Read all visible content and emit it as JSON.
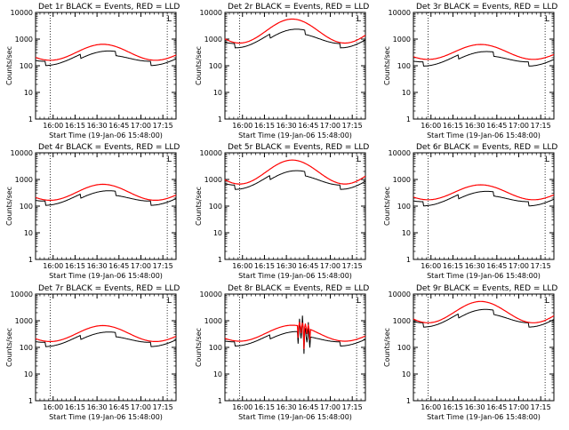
{
  "chart_data": {
    "type": "line",
    "ylabel": "Counts/sec",
    "xlabel": "Start Time (19-Jan-06 15:48:00)",
    "x_tick_labels": [
      "16:00",
      "16:15",
      "16:30",
      "16:45",
      "17:00",
      "17:15"
    ],
    "y_tick_labels": [
      "1",
      "10",
      "100",
      "1000",
      "10000"
    ],
    "y_scale": "log",
    "ylim": [
      1,
      10000
    ],
    "xlim_minutes_after_start": [
      0,
      96
    ],
    "legend": "in title",
    "corner_mark": "L",
    "series_colors": {
      "events": "#000000",
      "lld": "#ff0000"
    },
    "panels": [
      {
        "title": "Det 1r BLACK = Events, RED = LLD",
        "lld_base": 320,
        "lld_amp": 0.3,
        "ev_base": 200,
        "ev_amp": 0.22,
        "ev_step": 0.55
      },
      {
        "title": "Det 2r BLACK = Events, RED = LLD",
        "lld_base": 2000,
        "lld_amp": 0.45,
        "ev_base": 1100,
        "ev_amp": 0.3,
        "ev_step": 0.6
      },
      {
        "title": "Det 3r BLACK = Events, RED = LLD",
        "lld_base": 330,
        "lld_amp": 0.28,
        "ev_base": 190,
        "ev_amp": 0.22,
        "ev_step": 0.55
      },
      {
        "title": "Det 4r BLACK = Events, RED = LLD",
        "lld_base": 330,
        "lld_amp": 0.3,
        "ev_base": 210,
        "ev_amp": 0.22,
        "ev_step": 0.55
      },
      {
        "title": "Det 5r BLACK = Events, RED = LLD",
        "lld_base": 1900,
        "lld_amp": 0.45,
        "ev_base": 1000,
        "ev_amp": 0.3,
        "ev_step": 0.6
      },
      {
        "title": "Det 6r BLACK = Events, RED = LLD",
        "lld_base": 330,
        "lld_amp": 0.28,
        "ev_base": 200,
        "ev_amp": 0.22,
        "ev_step": 0.55
      },
      {
        "title": "Det 7r BLACK = Events, RED = LLD",
        "lld_base": 330,
        "lld_amp": 0.3,
        "ev_base": 210,
        "ev_amp": 0.22,
        "ev_step": 0.55
      },
      {
        "title": "Det 8r BLACK = Events, RED = LLD",
        "lld_base": 340,
        "lld_amp": 0.3,
        "ev_base": 220,
        "ev_amp": 0.22,
        "ev_step": 0.55,
        "glitch": true
      },
      {
        "title": "Det 9r BLACK = Events, RED = LLD",
        "lld_base": 2100,
        "lld_amp": 0.4,
        "ev_base": 1300,
        "ev_amp": 0.28,
        "ev_step": 0.55
      }
    ]
  }
}
